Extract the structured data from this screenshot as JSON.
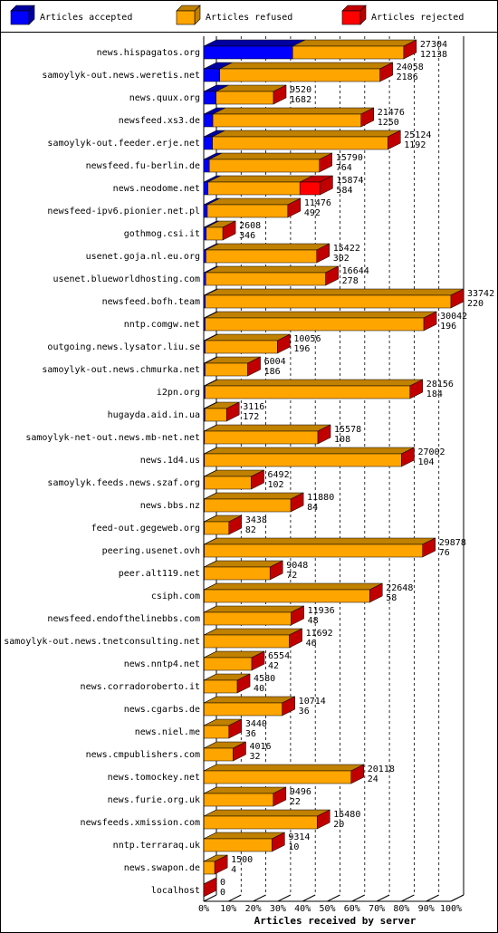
{
  "chart_data": {
    "type": "bar3d_stacked_horizontal",
    "xlabel": "Articles received by server",
    "categories": [
      "news.hispagatos.org",
      "samoylyk-out.news.weretis.net",
      "news.quux.org",
      "newsfeed.xs3.de",
      "samoylyk-out.feeder.erje.net",
      "newsfeed.fu-berlin.de",
      "news.neodome.net",
      "newsfeed-ipv6.pionier.net.pl",
      "gothmog.csi.it",
      "usenet.goja.nl.eu.org",
      "usenet.blueworldhosting.com",
      "newsfeed.bofh.team",
      "nntp.comgw.net",
      "outgoing.news.lysator.liu.se",
      "samoylyk-out.news.chmurka.net",
      "i2pn.org",
      "hugayda.aid.in.ua",
      "samoylyk-net-out.news.mb-net.net",
      "news.1d4.us",
      "samoylyk.feeds.news.szaf.org",
      "news.bbs.nz",
      "feed-out.gegeweb.org",
      "peering.usenet.ovh",
      "peer.alt119.net",
      "csiph.com",
      "newsfeed.endofthelinebbs.com",
      "samoylyk-out.news.tnetconsulting.net",
      "news.nntp4.net",
      "news.corradoroberto.it",
      "news.cgarbs.de",
      "news.niel.me",
      "news.cmpublishers.com",
      "news.tomockey.net",
      "news.furie.org.uk",
      "newsfeeds.xmission.com",
      "nntp.terraraq.uk",
      "news.swapon.de",
      "localhost"
    ],
    "totals": [
      27304,
      24058,
      9520,
      21476,
      25124,
      15790,
      15874,
      11476,
      2608,
      15422,
      16644,
      33742,
      30042,
      10056,
      6004,
      28156,
      3116,
      15578,
      27002,
      6492,
      11880,
      3438,
      29878,
      9048,
      22648,
      11936,
      11692,
      6554,
      4580,
      10714,
      3440,
      4016,
      20118,
      9496,
      15480,
      9314,
      1500,
      0
    ],
    "series": [
      {
        "name": "Articles accepted",
        "color": "#0000ff",
        "top": "#0000a0",
        "values": [
          12138,
          2186,
          1682,
          1250,
          1192,
          764,
          584,
          492,
          346,
          302,
          278,
          220,
          196,
          196,
          186,
          184,
          172,
          108,
          104,
          102,
          84,
          82,
          76,
          72,
          58,
          48,
          46,
          42,
          40,
          36,
          36,
          32,
          24,
          22,
          20,
          10,
          4,
          0
        ]
      },
      {
        "name": "Articles refused",
        "color": "#ffa500",
        "top": "#c08000",
        "values": [
          15166,
          21872,
          7838,
          20226,
          23932,
          15026,
          12540,
          10984,
          2262,
          15120,
          16366,
          33522,
          29846,
          9860,
          5818,
          27972,
          2944,
          15470,
          26898,
          6390,
          11796,
          3356,
          29802,
          8976,
          22590,
          11888,
          11646,
          6512,
          4540,
          10678,
          3404,
          3984,
          20094,
          9474,
          15460,
          9304,
          1496,
          0
        ]
      },
      {
        "name": "Articles rejected",
        "color": "#ff0000",
        "top": "#c00000",
        "values": [
          0,
          0,
          0,
          0,
          0,
          0,
          2750,
          0,
          0,
          0,
          0,
          0,
          0,
          0,
          0,
          0,
          0,
          0,
          0,
          0,
          0,
          0,
          0,
          0,
          0,
          0,
          0,
          0,
          0,
          0,
          0,
          0,
          0,
          0,
          0,
          0,
          0,
          0
        ]
      }
    ],
    "xlim": [
      0,
      33742
    ],
    "xticks": [
      {
        "value": 0,
        "label": "0%"
      },
      {
        "value": 3374.2,
        "label": "10%"
      },
      {
        "value": 6748.4,
        "label": "20%"
      },
      {
        "value": 10122.6,
        "label": "30%"
      },
      {
        "value": 13496.8,
        "label": "40%"
      },
      {
        "value": 16871,
        "label": "50%"
      },
      {
        "value": 20245.2,
        "label": "60%"
      },
      {
        "value": 23619.4,
        "label": "70%"
      },
      {
        "value": 26993.6,
        "label": "80%"
      },
      {
        "value": 30367.8,
        "label": "90%"
      },
      {
        "value": 33742,
        "label": "100%"
      }
    ],
    "grid": true
  }
}
